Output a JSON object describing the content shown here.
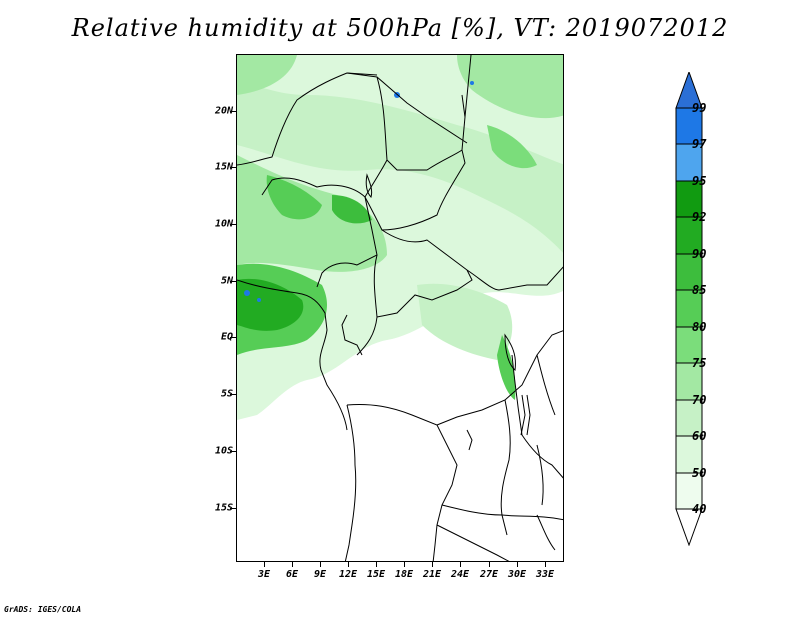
{
  "title": "Relative humidity at 500hPa [%], VT: 2019072012",
  "credit": "GrADS: IGES/COLA",
  "map": {
    "lat_labels": [
      "20N",
      "15N",
      "10N",
      "5N",
      "EQ",
      "5S",
      "10S",
      "15S"
    ],
    "lon_labels": [
      "3E",
      "6E",
      "9E",
      "12E",
      "15E",
      "18E",
      "21E",
      "24E",
      "27E",
      "30E",
      "33E"
    ]
  },
  "colorbar": {
    "levels": [
      "99",
      "97",
      "95",
      "92",
      "90",
      "85",
      "80",
      "75",
      "70",
      "60",
      "50",
      "40"
    ],
    "colors": [
      "#2b6fd6",
      "#1e78e6",
      "#4ea5ee",
      "#119b11",
      "#22ab22",
      "#3dbd3d",
      "#56cd56",
      "#7bdd7b",
      "#a3e8a3",
      "#c6f1c6",
      "#dcf8dc",
      "#eefcee"
    ]
  }
}
